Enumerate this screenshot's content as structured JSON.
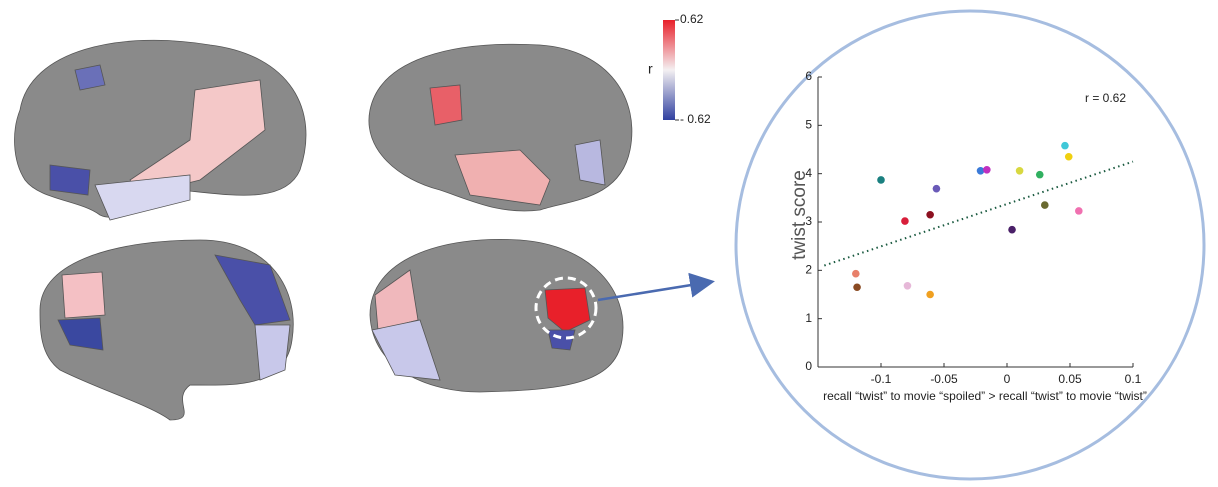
{
  "colorbar": {
    "label": "r",
    "lim": [
      -0.62,
      0.62
    ],
    "ticks": [
      {
        "value": 0.62,
        "label": "0.62"
      },
      {
        "value": -0.62,
        "label": "- 0.62"
      }
    ]
  },
  "chart_data": {
    "type": "scatter",
    "xlabel": "recall “twist” to movie “spoiled” > recall “twist” to movie “twist”",
    "ylabel": "twist score",
    "annotation": "r = 0.62",
    "xlim": [
      -0.15,
      0.1
    ],
    "xticks": [
      -0.1,
      -0.05,
      0,
      0.05,
      0.1
    ],
    "ylim": [
      0,
      6
    ],
    "yticks": [
      0,
      1,
      2,
      3,
      4,
      5,
      6
    ],
    "x": [
      -0.12,
      -0.119,
      -0.1,
      -0.081,
      -0.079,
      -0.061,
      -0.061,
      -0.056,
      -0.021,
      -0.016,
      0.004,
      0.01,
      0.026,
      0.03,
      0.046,
      0.049,
      0.057
    ],
    "y": [
      1.93,
      1.65,
      3.87,
      3.02,
      1.68,
      3.15,
      1.5,
      3.69,
      4.06,
      4.08,
      2.84,
      4.06,
      3.98,
      3.35,
      4.58,
      4.35,
      3.23
    ],
    "colors": [
      "#e8806a",
      "#8a4a22",
      "#1a8080",
      "#d81e3a",
      "#e6b8d8",
      "#8c1020",
      "#f0a020",
      "#6a5ab8",
      "#3a7ad8",
      "#c030c0",
      "#4a2068",
      "#d8d840",
      "#30b060",
      "#6a6a30",
      "#40c8d8",
      "#f0d010",
      "#f070b0"
    ],
    "trend": {
      "color": "#1a5a40",
      "x": [
        -0.145,
        0.1
      ],
      "y": [
        2.1,
        4.25
      ]
    }
  }
}
